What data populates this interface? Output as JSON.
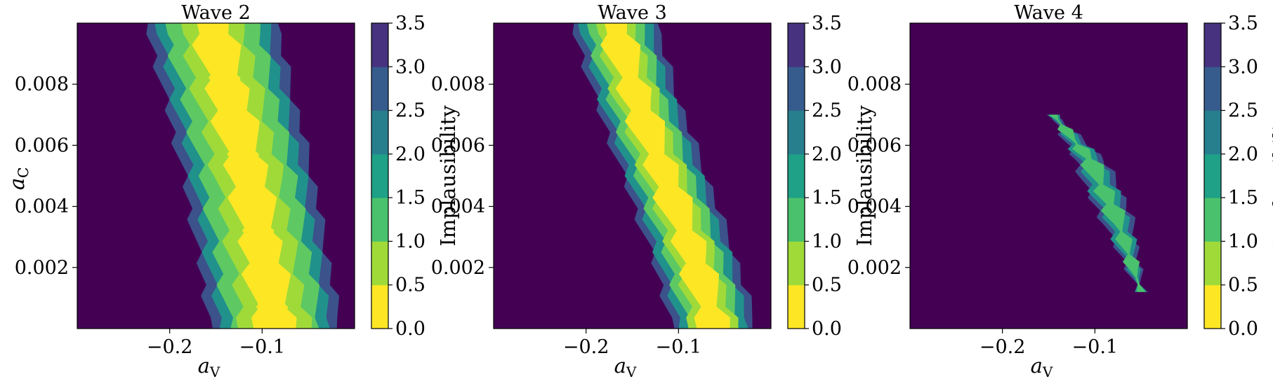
{
  "chart_data": [
    {
      "type": "contour",
      "title": "Wave 2",
      "xlabel": "a",
      "xlabel_sub": "V",
      "ylabel": "a",
      "ylabel_sub": "C",
      "xlim": [
        -0.3,
        0.0
      ],
      "ylim": [
        0.0,
        0.01
      ],
      "xticks": [
        {
          "v": -0.2,
          "label": "−0.2"
        },
        {
          "v": -0.1,
          "label": "−0.1"
        }
      ],
      "yticks": [
        {
          "v": 0.002,
          "label": "0.002"
        },
        {
          "v": 0.004,
          "label": "0.004"
        },
        {
          "v": 0.006,
          "label": "0.006"
        },
        {
          "v": 0.008,
          "label": "0.008"
        }
      ],
      "colorbar": {
        "label": "Implausibility",
        "levels": [
          0.0,
          0.5,
          1.0,
          1.5,
          2.0,
          2.5,
          3.0,
          3.5
        ],
        "tick_labels": [
          "0.0",
          "0.5",
          "1.0",
          "1.5",
          "2.0",
          "2.5",
          "3.0",
          "3.5"
        ],
        "band_colors": [
          "#fde725",
          "#fde725",
          "#a0da39",
          "#4ac16d",
          "#1fa187",
          "#277f8e",
          "#365c8d",
          "#46327e"
        ]
      },
      "background_color": "#440154",
      "region": {
        "centerline": [
          [
            -0.085,
            0.0
          ],
          [
            -0.1,
            0.0025
          ],
          [
            -0.115,
            0.005
          ],
          [
            -0.135,
            0.0075
          ],
          [
            -0.155,
            0.01
          ]
        ],
        "half_width": [
          0.07,
          0.06,
          0.05,
          0.035,
          0.02,
          0.01
        ],
        "band_colors": [
          "#3b528b",
          "#21918c",
          "#5ec962",
          "#a0da39",
          "#fde725",
          "#fde725"
        ]
      }
    },
    {
      "type": "contour",
      "title": "Wave 3",
      "xlabel": "a",
      "xlabel_sub": "V",
      "ylabel": "a",
      "ylabel_sub": "C",
      "xlim": [
        -0.3,
        0.0
      ],
      "ylim": [
        0.0,
        0.01
      ],
      "xticks": [
        {
          "v": -0.2,
          "label": "−0.2"
        },
        {
          "v": -0.1,
          "label": "−0.1"
        }
      ],
      "yticks": [
        {
          "v": 0.002,
          "label": "0.002"
        },
        {
          "v": 0.004,
          "label": "0.004"
        },
        {
          "v": 0.006,
          "label": "0.006"
        },
        {
          "v": 0.008,
          "label": "0.008"
        }
      ],
      "colorbar": {
        "label": "Implausibility",
        "levels": [
          0.0,
          0.5,
          1.0,
          1.5,
          2.0,
          2.5,
          3.0,
          3.5
        ],
        "tick_labels": [
          "0.0",
          "0.5",
          "1.0",
          "1.5",
          "2.0",
          "2.5",
          "3.0",
          "3.5"
        ],
        "band_colors": [
          "#fde725",
          "#fde725",
          "#a0da39",
          "#4ac16d",
          "#1fa187",
          "#277f8e",
          "#365c8d",
          "#46327e"
        ]
      },
      "background_color": "#440154",
      "region": {
        "centerline": [
          [
            -0.06,
            0.0
          ],
          [
            -0.085,
            0.0025
          ],
          [
            -0.115,
            0.005
          ],
          [
            -0.145,
            0.0075
          ],
          [
            -0.17,
            0.01
          ]
        ],
        "half_width": [
          0.045,
          0.038,
          0.03,
          0.022,
          0.015
        ],
        "band_colors": [
          "#3b528b",
          "#21918c",
          "#5ec962",
          "#a0da39",
          "#fde725"
        ]
      }
    },
    {
      "type": "contour",
      "title": "Wave 4",
      "xlabel": "a",
      "xlabel_sub": "V",
      "ylabel": "",
      "ylabel_sub": "",
      "xlim": [
        -0.3,
        0.0
      ],
      "ylim": [
        0.0,
        0.01
      ],
      "xticks": [
        {
          "v": -0.2,
          "label": "−0.2"
        },
        {
          "v": -0.1,
          "label": "−0.1"
        }
      ],
      "yticks": [
        {
          "v": 0.002,
          "label": "0.002"
        },
        {
          "v": 0.004,
          "label": "0.004"
        },
        {
          "v": 0.006,
          "label": "0.006"
        },
        {
          "v": 0.008,
          "label": "0.008"
        }
      ],
      "colorbar": {
        "label": "Implausibility",
        "levels": [
          0.0,
          0.5,
          1.0,
          1.5,
          2.0,
          2.5,
          3.0,
          3.5
        ],
        "tick_labels": [
          "0.0",
          "0.5",
          "1.0",
          "1.5",
          "2.0",
          "2.5",
          "3.0",
          "3.5"
        ],
        "band_colors": [
          "#fde725",
          "#fde725",
          "#a0da39",
          "#4ac16d",
          "#1fa187",
          "#277f8e",
          "#365c8d",
          "#46327e"
        ]
      },
      "background_color": "#440154",
      "region": {
        "centerline": [
          [
            -0.05,
            0.0012
          ],
          [
            -0.075,
            0.0035
          ],
          [
            -0.105,
            0.0055
          ],
          [
            -0.145,
            0.007
          ]
        ],
        "half_width": [
          0.018,
          0.013,
          0.008
        ],
        "band_colors": [
          "#3b528b",
          "#21918c",
          "#4ac16d"
        ]
      }
    }
  ]
}
